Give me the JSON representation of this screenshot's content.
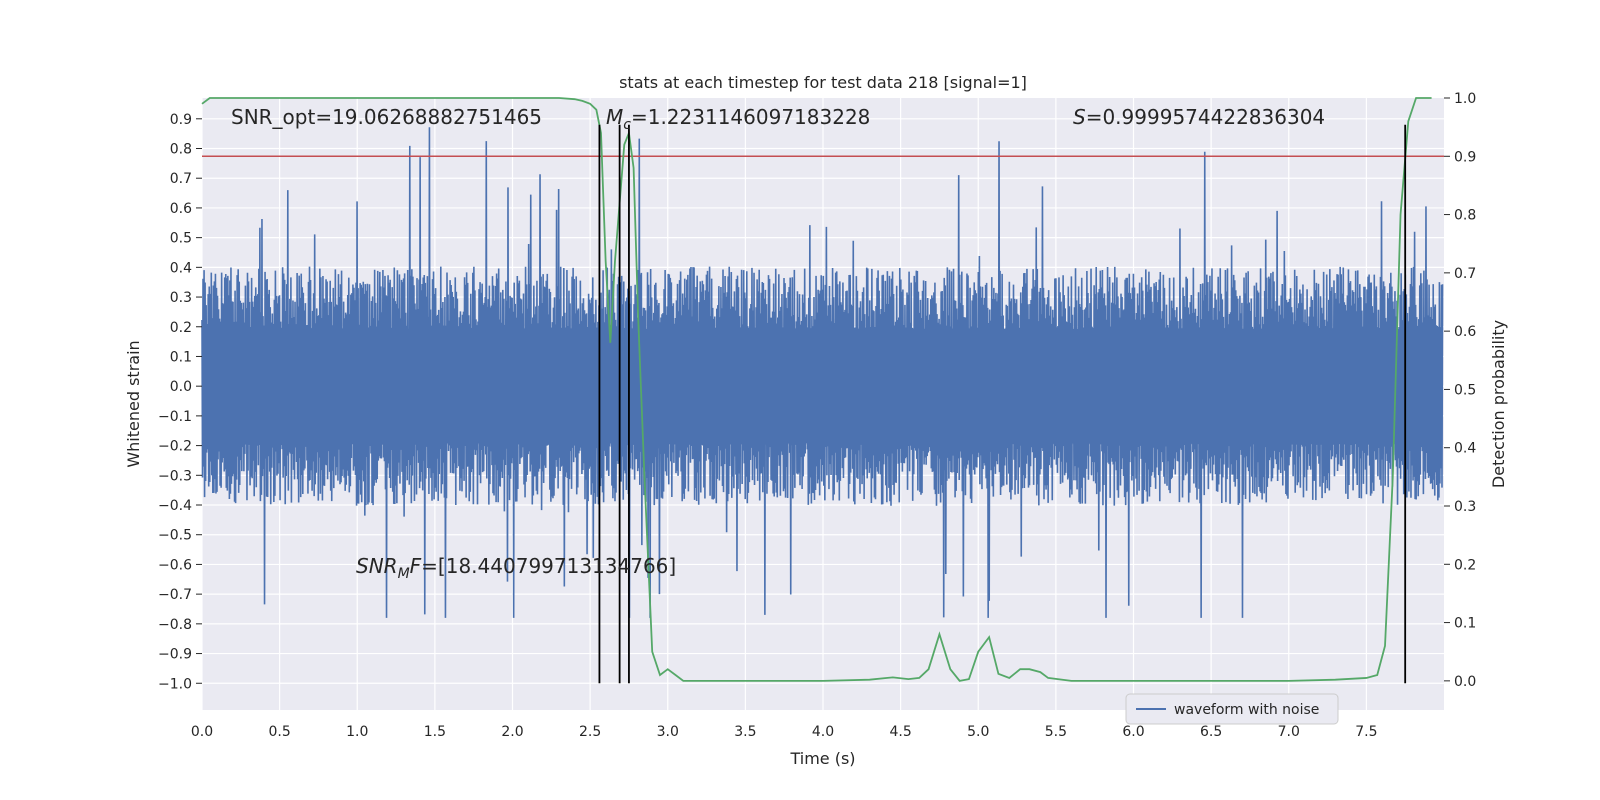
{
  "chart_data": {
    "type": "line",
    "title": "stats at each timestep for test data 218 [signal=1]",
    "xlabel": "Time (s)",
    "ylabel_left": "Whitened strain",
    "ylabel_right": "Detection probability",
    "xlim": [
      0.0,
      8.0
    ],
    "ylim_left": [
      -1.09,
      0.97
    ],
    "ylim_right": [
      -0.05,
      1.0
    ],
    "x_ticks": [
      "0.0",
      "0.5",
      "1.0",
      "1.5",
      "2.0",
      "2.5",
      "3.0",
      "3.5",
      "4.0",
      "4.5",
      "5.0",
      "5.5",
      "6.0",
      "6.5",
      "7.0",
      "7.5"
    ],
    "x_tick_values": [
      0.0,
      0.5,
      1.0,
      1.5,
      2.0,
      2.5,
      3.0,
      3.5,
      4.0,
      4.5,
      5.0,
      5.5,
      6.0,
      6.5,
      7.0,
      7.5
    ],
    "y_left_ticks": [
      "0.9",
      "0.8",
      "0.7",
      "0.6",
      "0.5",
      "0.4",
      "0.3",
      "0.2",
      "0.1",
      "0.0",
      "−0.1",
      "−0.2",
      "−0.3",
      "−0.4",
      "−0.5",
      "−0.6",
      "−0.7",
      "−0.8",
      "−0.9",
      "−1.0"
    ],
    "y_left_tick_values": [
      0.9,
      0.8,
      0.7,
      0.6,
      0.5,
      0.4,
      0.3,
      0.2,
      0.1,
      0.0,
      -0.1,
      -0.2,
      -0.3,
      -0.4,
      -0.5,
      -0.6,
      -0.7,
      -0.8,
      -0.9,
      -1.0
    ],
    "y_right_ticks": [
      "1.0",
      "0.9",
      "0.8",
      "0.7",
      "0.6",
      "0.5",
      "0.4",
      "0.3",
      "0.2",
      "0.1",
      "0.0"
    ],
    "y_right_tick_values": [
      1.0,
      0.9,
      0.8,
      0.7,
      0.6,
      0.5,
      0.4,
      0.3,
      0.2,
      0.1,
      0.0
    ],
    "threshold_right": 0.9,
    "vertical_lines_x": [
      2.56,
      2.69,
      2.75,
      7.75
    ],
    "vertical_lines_ylim_left": [
      -1.0,
      0.88
    ],
    "series": [
      {
        "name": "waveform with noise",
        "color": "#4c72b0",
        "axis": "left",
        "kind": "noise",
        "amplitude_range": [
          -0.78,
          0.88
        ],
        "typical_band": [
          -0.35,
          0.35
        ]
      },
      {
        "name": "detection probability",
        "color": "#55a868",
        "axis": "right",
        "x": [
          0.0,
          0.05,
          0.1,
          0.2,
          0.5,
          1.0,
          1.5,
          2.0,
          2.3,
          2.4,
          2.45,
          2.5,
          2.54,
          2.57,
          2.6,
          2.63,
          2.66,
          2.69,
          2.72,
          2.75,
          2.78,
          2.81,
          2.85,
          2.9,
          2.95,
          3.0,
          3.05,
          3.1,
          3.15,
          3.2,
          3.5,
          4.0,
          4.3,
          4.45,
          4.55,
          4.62,
          4.68,
          4.75,
          4.82,
          4.88,
          4.94,
          5.0,
          5.07,
          5.13,
          5.2,
          5.27,
          5.33,
          5.4,
          5.45,
          5.6,
          5.8,
          6.0,
          6.5,
          7.0,
          7.3,
          7.5,
          7.57,
          7.62,
          7.67,
          7.72,
          7.77,
          7.82,
          7.87,
          7.92
        ],
        "y": [
          0.99,
          1.0,
          1.0,
          1.0,
          1.0,
          1.0,
          1.0,
          1.0,
          1.0,
          0.998,
          0.995,
          0.99,
          0.98,
          0.94,
          0.72,
          0.58,
          0.72,
          0.82,
          0.92,
          0.94,
          0.88,
          0.62,
          0.35,
          0.05,
          0.01,
          0.02,
          0.01,
          0.0,
          0.0,
          0.0,
          0.0,
          0.0,
          0.002,
          0.006,
          0.003,
          0.005,
          0.02,
          0.08,
          0.02,
          0.0,
          0.003,
          0.05,
          0.075,
          0.012,
          0.005,
          0.02,
          0.02,
          0.015,
          0.005,
          0.0,
          0.0,
          0.0,
          0.0,
          0.0,
          0.002,
          0.005,
          0.01,
          0.06,
          0.35,
          0.8,
          0.96,
          1.0,
          1.0,
          1.0
        ]
      }
    ],
    "annotations": {
      "snr_opt": "SNR_opt=19.06268882751465",
      "mc_symbol": "M",
      "mc_sub": "c",
      "mc_value": "=1.2231146097183228",
      "s_symbol": "S",
      "s_value": "=0.9999574422836304",
      "snr_mf_symbol": "SNR",
      "snr_mf_sub": "M",
      "snr_mf_f": "F",
      "snr_mf_value": "=[18.440799713134766]"
    },
    "legend": {
      "label": "waveform with noise",
      "placement": "lower-right"
    },
    "grid": true,
    "colors": {
      "background": "#eaeaf2",
      "grid": "#ffffff",
      "threshold": "#c44e52",
      "vline": "#000000"
    }
  }
}
